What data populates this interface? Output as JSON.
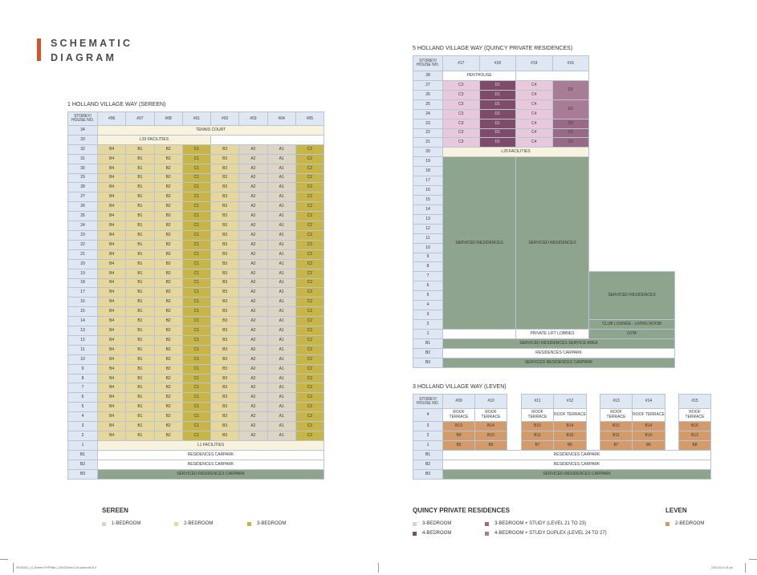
{
  "page_title": [
    "SCHEMATIC",
    "DIAGRAM"
  ],
  "colors": {
    "accent": "#d2562a",
    "one_bed": "#ddd5c3",
    "two_bed": "#e6d79d",
    "three_bed": "#c7b548",
    "q_three_bed": "#e7c9db",
    "q_four_bed": "#7e4b69",
    "q_three_study": "#986a86",
    "q_four_duplex": "#a77c94",
    "leven_two_bed": "#d39a6a",
    "serviced": "#8fa48c"
  },
  "sereen": {
    "title": "1 HOLLAND VILLAGE WAY (SEREEN)",
    "storey_header": "STOREY/ HOUSE NO.",
    "houses": [
      "#06",
      "#07",
      "#08",
      "#01",
      "#02",
      "#03",
      "#04",
      "#05"
    ],
    "top": [
      {
        "storey": "34",
        "label": "TENNIS COURT"
      },
      {
        "storey": "33",
        "label": "L33 FACILITIES"
      }
    ],
    "unit_floors": [
      "32",
      "31",
      "30",
      "29",
      "28",
      "27",
      "26",
      "25",
      "24",
      "23",
      "22",
      "21",
      "20",
      "19",
      "18",
      "17",
      "16",
      "15",
      "14",
      "13",
      "12",
      "11",
      "10",
      "9",
      "8",
      "7",
      "6",
      "5",
      "4",
      "3",
      "2"
    ],
    "units": [
      "B4",
      "B1",
      "B2",
      "C1",
      "B3",
      "A2",
      "A1",
      "C2"
    ],
    "bottom": [
      {
        "storey": "1",
        "label": "L1 FACILITIES"
      },
      {
        "storey": "B1",
        "label": "RESIDENCES CARPARK"
      },
      {
        "storey": "B2",
        "label": "RESIDENCES CARPARK"
      },
      {
        "storey": "B3",
        "label": "SERVICED RESIDENCES CARPARK"
      }
    ]
  },
  "quincy": {
    "title": "5 HOLLAND VILLAGE WAY (QUINCY PRIVATE RESIDENCES)",
    "storey_header": "STOREY/ HOUSE NO.",
    "houses": [
      "#17",
      "#18",
      "#19",
      "#16"
    ],
    "penthouse": {
      "storey": "28",
      "label": "PENTHOUSE"
    },
    "unit_rows": [
      {
        "storey": "27",
        "units": [
          "C3",
          "D1",
          "C4",
          "D2"
        ]
      },
      {
        "storey": "26",
        "units": [
          "C3",
          "D1",
          "C4"
        ]
      },
      {
        "storey": "25",
        "units": [
          "C3",
          "D1",
          "C4",
          "D2"
        ]
      },
      {
        "storey": "24",
        "units": [
          "C3",
          "D1",
          "C4"
        ]
      },
      {
        "storey": "23",
        "units": [
          "C3",
          "D1",
          "C4",
          "C5"
        ]
      },
      {
        "storey": "22",
        "units": [
          "C3",
          "D1",
          "C4",
          "C5"
        ]
      },
      {
        "storey": "21",
        "units": [
          "C3",
          "D1",
          "C4",
          "C5"
        ]
      }
    ],
    "facilities": {
      "storey": "20",
      "label": "L20 FACILITIES"
    },
    "mid_storeys": [
      "19",
      "18",
      "17",
      "16",
      "15",
      "14",
      "13",
      "12",
      "11",
      "10",
      "9",
      "8",
      "7",
      "6",
      "5",
      "4",
      "3",
      "2"
    ],
    "serviced_left": "SERVICED RESIDENCES",
    "serviced_right": "SERVICED RESIDENCES",
    "serviced_extra": "SERVICED RESIDENCES",
    "club_lounge": "CLUB LOUNGE - LIVING ROOM",
    "ground": {
      "storey": "1",
      "lobbies": "PRIVATE LIFT LOBBIES",
      "gym": "GYM"
    },
    "basement": [
      {
        "storey": "B1",
        "label": "SERVICED RESIDENCES SERVICE AREA"
      },
      {
        "storey": "B2",
        "label": "RESIDENCES CARPARK"
      },
      {
        "storey": "B3",
        "label": "SERVICED RESIDENCES CARPARK"
      }
    ]
  },
  "leven": {
    "title": "3 HOLLAND VILLAGE WAY (LEVEN)",
    "storey_header": "STOREY/ HOUSE NO.",
    "house_groups": [
      [
        "#09",
        "#10"
      ],
      [
        "#11",
        "#12"
      ],
      [
        "#13",
        "#14"
      ],
      [
        "#15"
      ]
    ],
    "roof": {
      "storey": "4",
      "label": "ROOF TERRACE"
    },
    "unit_rows": [
      {
        "storey": "3",
        "groups": [
          [
            "B13",
            "B14"
          ],
          [
            "B15",
            "B14"
          ],
          [
            "B15",
            "B14"
          ],
          [
            "B16"
          ]
        ]
      },
      {
        "storey": "2",
        "groups": [
          [
            "B9",
            "B10"
          ],
          [
            "B11",
            "B10"
          ],
          [
            "B11",
            "B10"
          ],
          [
            "B12"
          ]
        ]
      },
      {
        "storey": "1",
        "groups": [
          [
            "B5",
            "B6"
          ],
          [
            "B7",
            "B6"
          ],
          [
            "B7",
            "B6"
          ],
          [
            "B8"
          ]
        ]
      }
    ],
    "basement": [
      {
        "storey": "B1",
        "label": "RESIDENCES CARPARK"
      },
      {
        "storey": "B2",
        "label": "RESIDENCES CARPARK"
      },
      {
        "storey": "B3",
        "label": "SERVICED RESIDENCES CARPARK"
      }
    ]
  },
  "legend": {
    "sereen": {
      "title": "SEREEN",
      "items": [
        "1-BEDROOM",
        "2-BEDROOM",
        "3-BEDROOM"
      ]
    },
    "quincy": {
      "title": "QUINCY PRIVATE RESIDENCES",
      "items": [
        "3-BEDROOM",
        "4-BEDROOM",
        "3-BEDROOM + STUDY (LEVEL 21 TO 23)",
        "4-BEDROOM + STUDY DUPLEX (LEVEL 24 TO 27)"
      ]
    },
    "leven": {
      "title": "LEVEN",
      "items": [
        "2-BEDROOM"
      ]
    }
  },
  "footer": {
    "left": "FEO0402_14_Sereen FH/PhBro_220x320mm-13b-path.indd   8-9",
    "right": "22/11/19   6:19 pm"
  }
}
